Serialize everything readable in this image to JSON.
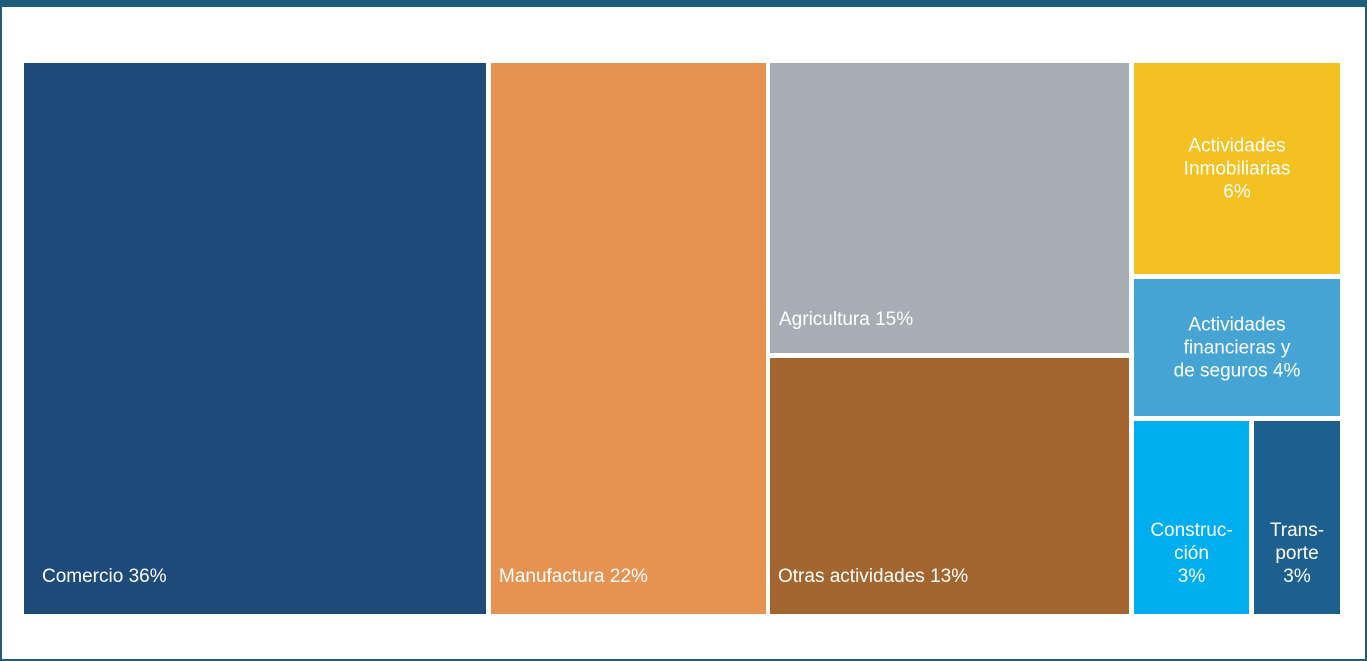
{
  "chart_data": {
    "type": "treemap",
    "items": [
      {
        "label": "Comercio 36%",
        "value": 36,
        "color": "#1f4b7a"
      },
      {
        "label": "Manufactura 22%",
        "value": 22,
        "color": "#e69352"
      },
      {
        "label": "Agricultura 15%",
        "value": 15,
        "color": "#a7adb4"
      },
      {
        "label": "Otras actividades 13%",
        "value": 13,
        "color": "#a36630"
      },
      {
        "label": "Actividades\nInmobiliarias\n6%",
        "value": 6,
        "color": "#f3c122"
      },
      {
        "label": "Actividades\nfinancieras y\nde seguros 4%",
        "value": 4,
        "color": "#45a4d4"
      },
      {
        "label": "Construc-\nción\n3%",
        "value": 3,
        "color": "#00aeef"
      },
      {
        "label": "Trans-\nporte\n3%",
        "value": 3,
        "color": "#1d5f8f"
      }
    ]
  }
}
